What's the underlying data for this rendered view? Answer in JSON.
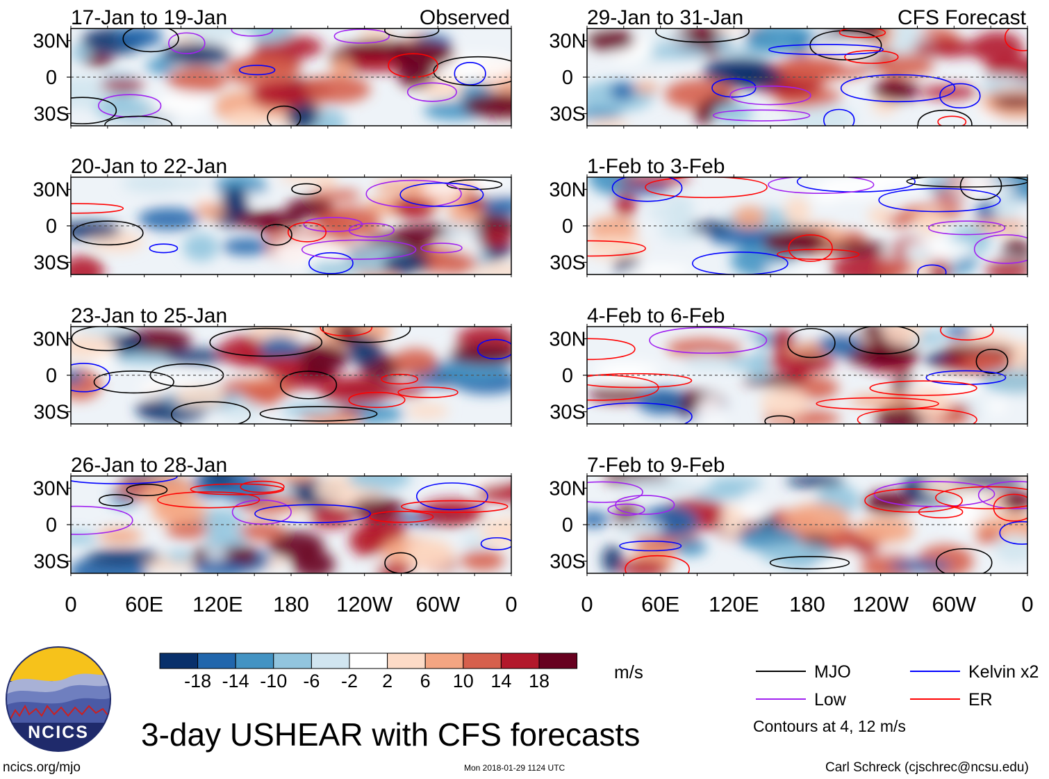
{
  "chart_data": {
    "type": "heatmap",
    "variable": "USHEAR",
    "title": "3-day USHEAR with CFS forecasts",
    "units": "m/s",
    "column_headers": {
      "observed": "Observed",
      "forecast": "CFS Forecast"
    },
    "y_ticks": [
      "30N",
      "0",
      "30S"
    ],
    "y_tick_values": [
      30,
      0,
      -30
    ],
    "ylim": [
      -40,
      40
    ],
    "x_ticks": [
      "0",
      "60E",
      "120E",
      "180",
      "120W",
      "60W",
      "0"
    ],
    "x_tick_values": [
      0,
      60,
      120,
      180,
      240,
      300,
      360
    ],
    "xlim": [
      0,
      360
    ],
    "panels": [
      {
        "period": "17-Jan to 19-Jan",
        "source": "observed"
      },
      {
        "period": "20-Jan to 22-Jan",
        "source": "observed"
      },
      {
        "period": "23-Jan to 25-Jan",
        "source": "observed"
      },
      {
        "period": "26-Jan to 28-Jan",
        "source": "observed"
      },
      {
        "period": "29-Jan to 31-Jan",
        "source": "forecast"
      },
      {
        "period": "1-Feb to 3-Feb",
        "source": "forecast"
      },
      {
        "period": "4-Feb to 6-Feb",
        "source": "forecast"
      },
      {
        "period": "7-Feb to 9-Feb",
        "source": "forecast"
      }
    ],
    "colorbar": {
      "labels": [
        "-18",
        "-14",
        "-10",
        "-6",
        "-2",
        "2",
        "6",
        "10",
        "14",
        "18"
      ],
      "colors": [
        "#08306b",
        "#2166ac",
        "#4393c3",
        "#92c5de",
        "#d1e5f0",
        "#ffffff",
        "#fddbc7",
        "#f4a582",
        "#d6604d",
        "#b2182b",
        "#67001f"
      ]
    },
    "contour_legend": [
      {
        "label": "MJO",
        "color": "#000000"
      },
      {
        "label": "Kelvin x2",
        "color": "#0000ff"
      },
      {
        "label": "Low",
        "color": "#a020f0"
      },
      {
        "label": "ER",
        "color": "#ff0000"
      }
    ],
    "contour_note": "Contours at 4, 12 m/s"
  },
  "logo": {
    "text": "NCICS"
  },
  "credits": {
    "left": "ncics.org/mjo",
    "middle": "Mon 2018-01-29 1124 UTC",
    "right": "Carl Schreck (cjschrec@ncsu.edu)"
  }
}
